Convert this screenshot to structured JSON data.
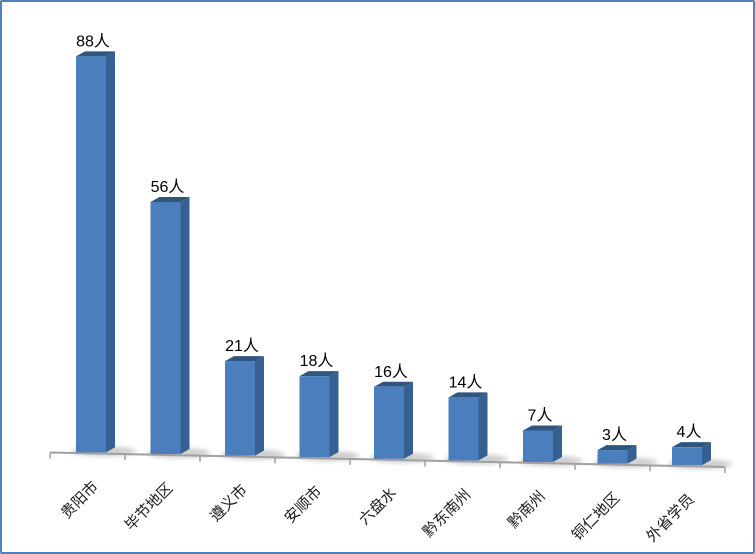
{
  "frame": {
    "background_color": "#ffffff",
    "border_color": "#4f81bd"
  },
  "chart_data": {
    "type": "bar",
    "style": "3d-column",
    "title": "",
    "xlabel": "",
    "ylabel": "",
    "legend": "none",
    "grid": false,
    "ylim": [
      0,
      95
    ],
    "categories": [
      "贵阳市",
      "毕节地区",
      "遵义市",
      "安顺市",
      "六盘水",
      "黔东南州",
      "黔南州",
      "铜仁地区",
      "外省学员"
    ],
    "values": [
      88,
      56,
      21,
      18,
      16,
      14,
      7,
      3,
      4
    ],
    "unit_suffix": "人",
    "data_labels": [
      "88人",
      "56人",
      "21人",
      "18人",
      "16人",
      "14人",
      "7人",
      "3人",
      "4人"
    ],
    "colors": {
      "bar_front": "#4a7ebc",
      "bar_side": "#35608f",
      "bar_top": "#2e567f",
      "axis_line": "#a0a0a0",
      "tick": "#a0a0a0",
      "shadow": "#9c9c9c",
      "label_text": "#000000"
    }
  }
}
